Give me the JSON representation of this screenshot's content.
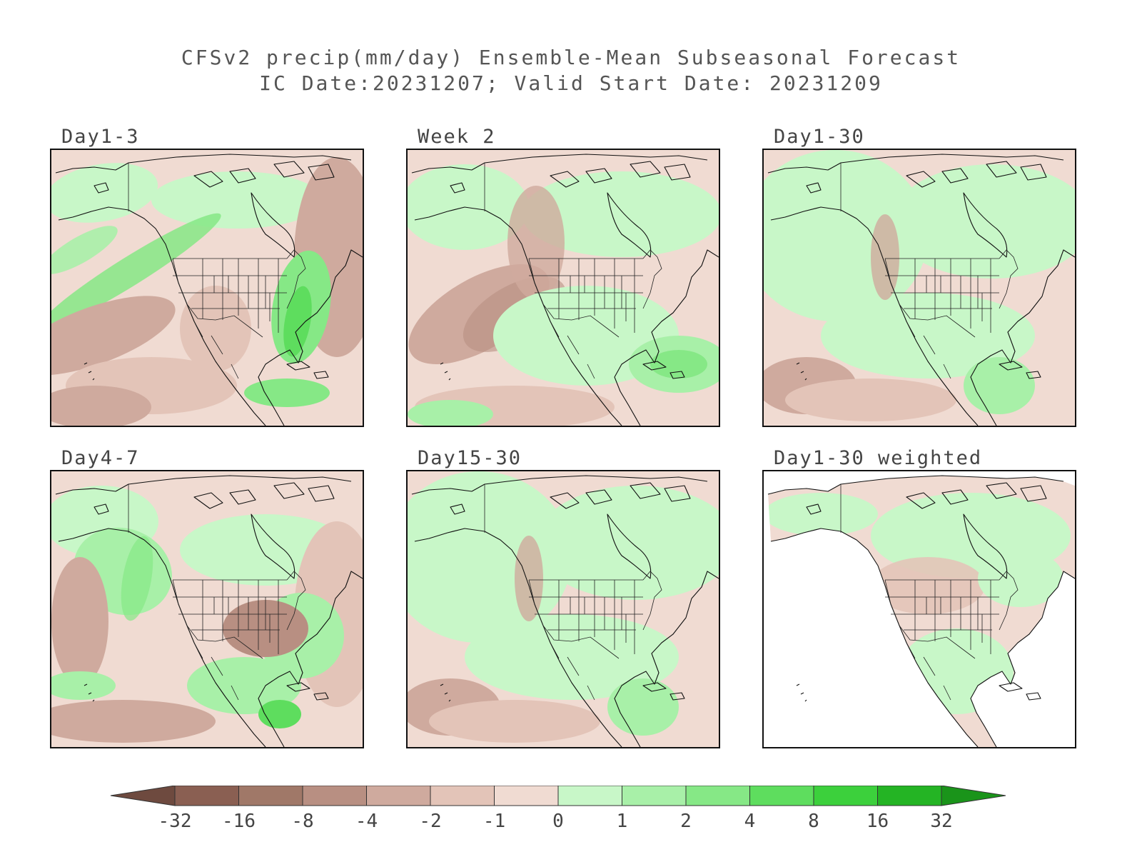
{
  "title": {
    "line1": "CFSv2 precip(mm/day) Ensemble-Mean Subseasonal Forecast",
    "line2": "IC Date:20231207; Valid Start Date: 20231209"
  },
  "panels": [
    {
      "id": "day1-3",
      "label": "Day1-3",
      "scheme": "wet-east"
    },
    {
      "id": "week2",
      "label": "Week 2",
      "scheme": "mixed"
    },
    {
      "id": "day1-30",
      "label": "Day1-30",
      "scheme": "mostly-wet"
    },
    {
      "id": "day4-7",
      "label": "Day4-7",
      "scheme": "dry-east"
    },
    {
      "id": "day15-30",
      "label": "Day15-30",
      "scheme": "mostly-wet"
    },
    {
      "id": "day1-30-weighted",
      "label": "Day1-30 weighted",
      "scheme": "land-only"
    }
  ],
  "colorbar": {
    "ticks": [
      "-32",
      "-16",
      "-8",
      "-4",
      "-2",
      "-1",
      "0",
      "1",
      "2",
      "4",
      "8",
      "16",
      "32"
    ],
    "colors": [
      "#6e4a3f",
      "#8a5f52",
      "#a07868",
      "#b88f82",
      "#cfaa9e",
      "#e3c4b8",
      "#f0dbd2",
      "#c8f7c8",
      "#a8f0a8",
      "#86e886",
      "#5edd5e",
      "#3cd03c",
      "#24b424",
      "#1a941a"
    ]
  }
}
